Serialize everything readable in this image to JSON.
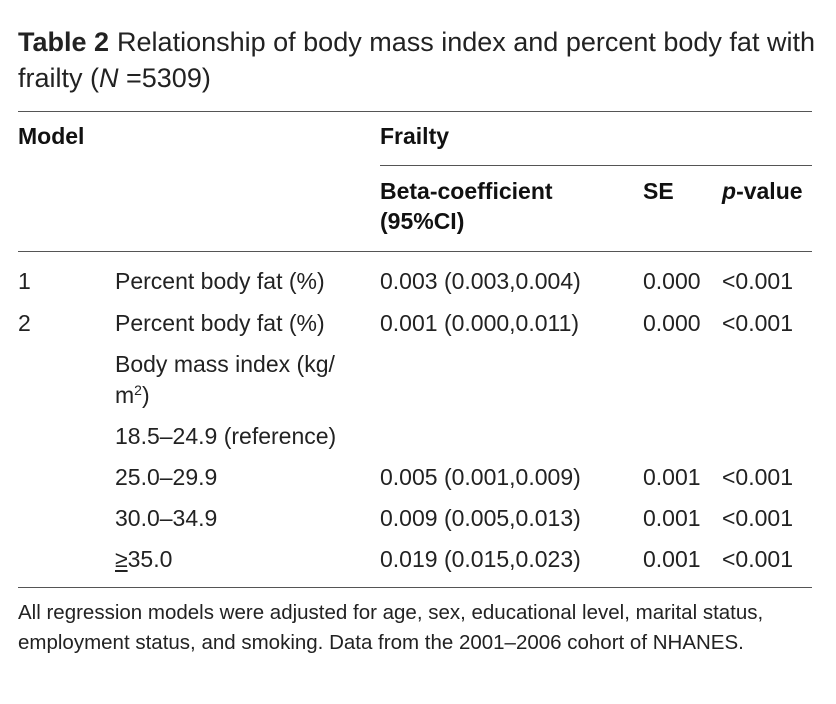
{
  "table": {
    "label": "Table 2",
    "title_before": "Relationship of body mass index and percent body fat with frailty (",
    "title_n": "N",
    "title_after": " =5309)",
    "headers": {
      "model": "Model",
      "frailty": "Frailty",
      "beta": "Beta-coefficient",
      "beta_ci": "(95%CI)",
      "se": "SE",
      "p_italic": "p",
      "p_rest": "-value"
    },
    "rows": [
      {
        "model": "1",
        "variable": "Percent body fat (%)",
        "beta": "0.003 (0.003,0.004)",
        "se": "0.000",
        "p": "<0.001"
      },
      {
        "model": "2",
        "variable": "Percent body fat (%)",
        "beta": "0.001 (0.000,0.011)",
        "se": "0.000",
        "p": "<0.001"
      },
      {
        "model": "",
        "variable_line1": "Body mass index (kg/",
        "variable_line2": "m",
        "variable_sup": "2",
        "variable_close": ")",
        "beta": "",
        "se": "",
        "p": ""
      },
      {
        "model": "",
        "variable": "18.5–24.9 (reference)",
        "beta": "",
        "se": "",
        "p": ""
      },
      {
        "model": "",
        "variable": "25.0–29.9",
        "beta": "0.005 (0.001,0.009)",
        "se": "0.001",
        "p": "<0.001"
      },
      {
        "model": "",
        "variable": "30.0–34.9",
        "beta": "0.009 (0.005,0.013)",
        "se": "0.001",
        "p": "<0.001"
      },
      {
        "model": "",
        "variable_symbol": "≥",
        "variable": "35.0",
        "beta": "0.019 (0.015,0.023)",
        "se": "0.001",
        "p": "<0.001"
      }
    ],
    "footnote": "All regression models were adjusted for age, sex, educational level, marital status, employment status, and smoking. Data from the 2001–2006 cohort of NHANES."
  }
}
